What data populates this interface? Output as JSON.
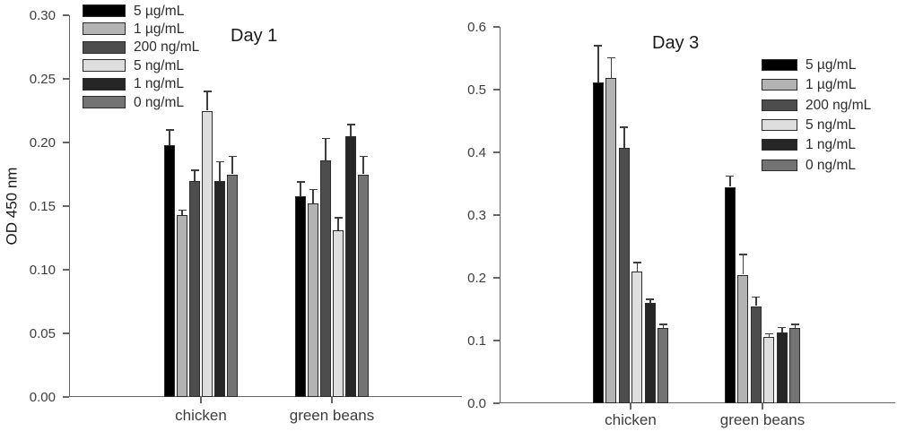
{
  "figure": {
    "background": "#ffffff",
    "axis_color": "#666666",
    "text_color": "#3d3d3d",
    "error_bar_color": "#3d3d3d",
    "bar_border_color": "#2b2b2b"
  },
  "chart_data": [
    {
      "type": "bar",
      "title": "Day 1",
      "ylabel": "OD 450 nm",
      "xlabel": "",
      "ylim": [
        0,
        0.3
      ],
      "yticks": [
        0,
        0.05,
        0.1,
        0.15,
        0.2,
        0.25,
        0.3
      ],
      "ytick_labels": [
        "0.00",
        "0.05",
        "0.10",
        "0.15",
        "0.20",
        "0.25",
        "0.30"
      ],
      "categories": [
        "chicken",
        "green beans"
      ],
      "grid": false,
      "legend_position": "top-left",
      "error_bars": true,
      "series": [
        {
          "name": "5 µg/mL",
          "color": "#000000",
          "values": [
            0.198,
            0.158
          ],
          "errors": [
            0.012,
            0.011
          ]
        },
        {
          "name": "1 µg/mL",
          "color": "#b3b3b3",
          "values": [
            0.143,
            0.152
          ],
          "errors": [
            0.004,
            0.011
          ]
        },
        {
          "name": "200 ng/mL",
          "color": "#4d4d4d",
          "values": [
            0.17,
            0.186
          ],
          "errors": [
            0.008,
            0.017
          ]
        },
        {
          "name": "5 ng/mL",
          "color": "#dedede",
          "values": [
            0.225,
            0.131
          ],
          "errors": [
            0.015,
            0.01
          ]
        },
        {
          "name": "1 ng/mL",
          "color": "#262626",
          "values": [
            0.17,
            0.205
          ],
          "errors": [
            0.015,
            0.009
          ]
        },
        {
          "name": "0 ng/mL",
          "color": "#737373",
          "values": [
            0.175,
            0.175
          ],
          "errors": [
            0.014,
            0.014
          ]
        }
      ]
    },
    {
      "type": "bar",
      "title": "Day 3",
      "ylabel": "",
      "xlabel": "",
      "ylim": [
        0,
        0.6
      ],
      "yticks": [
        0,
        0.1,
        0.2,
        0.3,
        0.4,
        0.5,
        0.6
      ],
      "ytick_labels": [
        "0.0",
        "0.1",
        "0.2",
        "0.3",
        "0.4",
        "0.5",
        "0.6"
      ],
      "categories": [
        "chicken",
        "green beans"
      ],
      "grid": false,
      "legend_position": "right",
      "error_bars": true,
      "series": [
        {
          "name": "5 µg/mL",
          "color": "#000000",
          "values": [
            0.512,
            0.345
          ],
          "errors": [
            0.058,
            0.017
          ]
        },
        {
          "name": "1 µg/mL",
          "color": "#b3b3b3",
          "values": [
            0.518,
            0.205
          ],
          "errors": [
            0.033,
            0.032
          ]
        },
        {
          "name": "200 ng/mL",
          "color": "#4d4d4d",
          "values": [
            0.407,
            0.155
          ],
          "errors": [
            0.033,
            0.014
          ]
        },
        {
          "name": "5 ng/mL",
          "color": "#dedede",
          "values": [
            0.21,
            0.106
          ],
          "errors": [
            0.014,
            0.005
          ]
        },
        {
          "name": "1 ng/mL",
          "color": "#262626",
          "values": [
            0.16,
            0.113
          ],
          "errors": [
            0.006,
            0.008
          ]
        },
        {
          "name": "0 ng/mL",
          "color": "#737373",
          "values": [
            0.12,
            0.12
          ],
          "errors": [
            0.006,
            0.006
          ]
        }
      ]
    }
  ]
}
